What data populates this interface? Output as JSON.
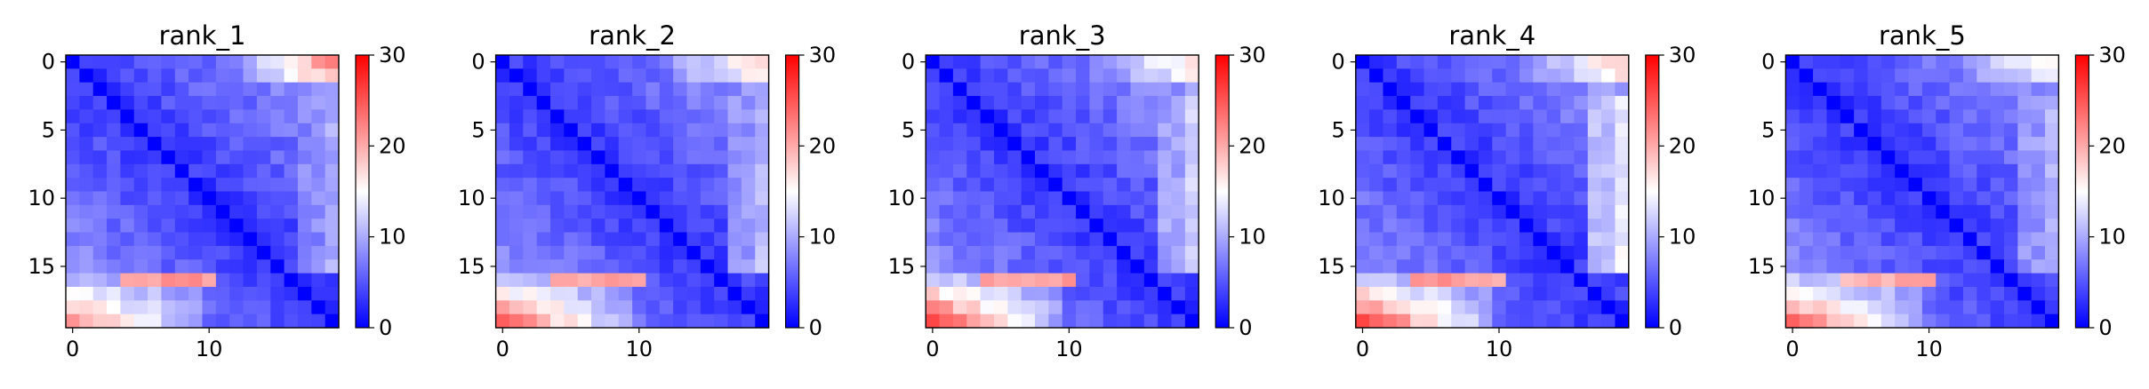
{
  "chart_data": [
    {
      "type": "heatmap",
      "title": "rank_1",
      "n": 20,
      "xticks": [
        "0",
        "10"
      ],
      "yticks": [
        "0",
        "5",
        "10",
        "15"
      ],
      "colorbar": {
        "min": 0,
        "max": 30,
        "ticks": [
          "0",
          "10",
          "20",
          "30"
        ],
        "colormap": "bwr"
      },
      "sample_values": {
        "diagonal": 0,
        "top_right_corner": 22,
        "bottom_left_corner": 21,
        "bottom_row_peak": 23,
        "edge_last_col_mid": 10
      }
    },
    {
      "type": "heatmap",
      "title": "rank_2",
      "n": 20,
      "xticks": [
        "0",
        "10"
      ],
      "yticks": [
        "0",
        "5",
        "10",
        "15"
      ],
      "colorbar": {
        "min": 0,
        "max": 30,
        "ticks": [
          "0",
          "10",
          "20",
          "30"
        ],
        "colormap": "bwr"
      },
      "sample_values": {
        "diagonal": 0,
        "top_right_corner": 18,
        "bottom_left_corner": 24,
        "bottom_row_peak": 22,
        "edge_last_col_mid": 11
      }
    },
    {
      "type": "heatmap",
      "title": "rank_3",
      "n": 20,
      "xticks": [
        "0",
        "10"
      ],
      "yticks": [
        "0",
        "5",
        "10",
        "15"
      ],
      "colorbar": {
        "min": 0,
        "max": 30,
        "ticks": [
          "0",
          "10",
          "20",
          "30"
        ],
        "colormap": "bwr"
      },
      "sample_values": {
        "diagonal": 0,
        "top_right_corner": 17,
        "bottom_left_corner": 26,
        "bottom_row_peak": 23,
        "edge_last_col_mid": 12
      }
    },
    {
      "type": "heatmap",
      "title": "rank_4",
      "n": 20,
      "xticks": [
        "0",
        "10"
      ],
      "yticks": [
        "0",
        "5",
        "10",
        "15"
      ],
      "colorbar": {
        "min": 0,
        "max": 30,
        "ticks": [
          "0",
          "10",
          "20",
          "30"
        ],
        "colormap": "bwr"
      },
      "sample_values": {
        "diagonal": 0,
        "top_right_corner": 18,
        "bottom_left_corner": 26,
        "bottom_row_peak": 23,
        "edge_last_col_mid": 14
      }
    },
    {
      "type": "heatmap",
      "title": "rank_5",
      "n": 20,
      "xticks": [
        "0",
        "10"
      ],
      "yticks": [
        "0",
        "5",
        "10",
        "15"
      ],
      "colorbar": {
        "min": 0,
        "max": 30,
        "ticks": [
          "0",
          "10",
          "20",
          "30"
        ],
        "colormap": "bwr"
      },
      "sample_values": {
        "diagonal": 0,
        "top_right_corner": 16,
        "bottom_left_corner": 24,
        "bottom_row_peak": 22,
        "edge_last_col_mid": 11
      }
    }
  ]
}
